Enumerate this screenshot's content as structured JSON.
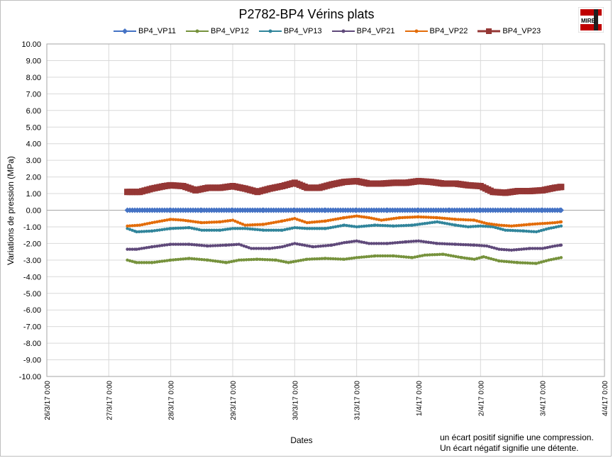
{
  "chart_data": {
    "type": "line",
    "title": "P2782-BP4 Vérins plats",
    "xlabel": "Dates",
    "ylabel": "Variations de pression (MPa)",
    "ylim": [
      -10,
      10
    ],
    "ytick_step": 1,
    "xlim": [
      0,
      9
    ],
    "x_tick_labels": [
      "26/3/17 0:00",
      "27/3/17 0:00",
      "28/3/17 0:00",
      "29/3/17 0:00",
      "30/3/17 0:00",
      "31/3/17 0:00",
      "1/4/17 0:00",
      "2/4/17 0:00",
      "3/4/17 0:00",
      "4/4/17 0:00"
    ],
    "x_unit": "days since 26/3/17 0:00",
    "grid": true,
    "legend_position": "top",
    "series": [
      {
        "name": "BP4_VP11",
        "color": "#4472c4",
        "marker": "diamond",
        "x": [
          1.3,
          1.5,
          2.0,
          2.5,
          3.0,
          3.5,
          4.0,
          4.5,
          5.0,
          5.5,
          6.0,
          6.5,
          7.0,
          7.5,
          8.0,
          8.3
        ],
        "y": [
          0,
          0,
          0,
          0,
          0,
          0,
          0,
          0,
          0,
          0,
          0,
          0,
          0,
          0,
          0,
          0
        ]
      },
      {
        "name": "BP4_VP12",
        "color": "#76923c",
        "marker": "circle",
        "x": [
          1.3,
          1.45,
          1.7,
          2.0,
          2.3,
          2.6,
          2.9,
          3.1,
          3.4,
          3.7,
          3.9,
          4.2,
          4.5,
          4.8,
          5.0,
          5.3,
          5.6,
          5.9,
          6.1,
          6.4,
          6.7,
          6.9,
          7.05,
          7.3,
          7.6,
          7.9,
          8.1,
          8.3
        ],
        "y": [
          -3.0,
          -3.15,
          -3.15,
          -3.0,
          -2.9,
          -3.0,
          -3.15,
          -3.0,
          -2.95,
          -3.0,
          -3.15,
          -2.95,
          -2.9,
          -2.95,
          -2.85,
          -2.75,
          -2.75,
          -2.85,
          -2.7,
          -2.65,
          -2.85,
          -2.95,
          -2.8,
          -3.05,
          -3.15,
          -3.2,
          -3.0,
          -2.85
        ]
      },
      {
        "name": "BP4_VP13",
        "color": "#31859b",
        "marker": "circle",
        "x": [
          1.3,
          1.45,
          1.7,
          2.0,
          2.3,
          2.5,
          2.8,
          3.0,
          3.2,
          3.5,
          3.8,
          4.0,
          4.2,
          4.5,
          4.8,
          5.0,
          5.3,
          5.6,
          5.9,
          6.1,
          6.3,
          6.6,
          6.8,
          7.0,
          7.2,
          7.4,
          7.7,
          7.9,
          8.1,
          8.3
        ],
        "y": [
          -1.1,
          -1.3,
          -1.25,
          -1.1,
          -1.05,
          -1.2,
          -1.2,
          -1.1,
          -1.1,
          -1.2,
          -1.2,
          -1.05,
          -1.1,
          -1.1,
          -0.9,
          -1.0,
          -0.9,
          -0.95,
          -0.9,
          -0.8,
          -0.7,
          -0.9,
          -1.0,
          -0.95,
          -1.0,
          -1.2,
          -1.25,
          -1.3,
          -1.1,
          -0.95
        ]
      },
      {
        "name": "BP4_VP21",
        "color": "#5f497a",
        "marker": "circle",
        "x": [
          1.3,
          1.45,
          1.7,
          2.0,
          2.3,
          2.6,
          2.9,
          3.1,
          3.3,
          3.6,
          3.8,
          4.0,
          4.3,
          4.6,
          4.8,
          5.0,
          5.2,
          5.5,
          5.8,
          6.0,
          6.3,
          6.6,
          6.9,
          7.1,
          7.3,
          7.5,
          7.8,
          8.0,
          8.2,
          8.3
        ],
        "y": [
          -2.35,
          -2.35,
          -2.2,
          -2.05,
          -2.05,
          -2.15,
          -2.1,
          -2.05,
          -2.3,
          -2.3,
          -2.2,
          -2.0,
          -2.2,
          -2.1,
          -1.95,
          -1.85,
          -2.0,
          -2.0,
          -1.9,
          -1.85,
          -2.0,
          -2.05,
          -2.1,
          -2.15,
          -2.35,
          -2.4,
          -2.3,
          -2.3,
          -2.15,
          -2.1
        ]
      },
      {
        "name": "BP4_VP22",
        "color": "#e36c09",
        "marker": "circle",
        "x": [
          1.3,
          1.5,
          1.7,
          2.0,
          2.2,
          2.5,
          2.8,
          3.0,
          3.2,
          3.5,
          3.8,
          4.0,
          4.2,
          4.5,
          4.8,
          5.0,
          5.2,
          5.4,
          5.7,
          6.0,
          6.3,
          6.6,
          6.9,
          7.1,
          7.3,
          7.5,
          7.8,
          8.0,
          8.2,
          8.3
        ],
        "y": [
          -0.95,
          -0.9,
          -0.75,
          -0.55,
          -0.6,
          -0.75,
          -0.7,
          -0.6,
          -0.9,
          -0.85,
          -0.65,
          -0.5,
          -0.75,
          -0.65,
          -0.45,
          -0.35,
          -0.45,
          -0.6,
          -0.45,
          -0.4,
          -0.45,
          -0.55,
          -0.6,
          -0.8,
          -0.9,
          -0.95,
          -0.85,
          -0.8,
          -0.75,
          -0.7
        ]
      },
      {
        "name": "BP4_VP23",
        "color": "#953735",
        "marker": "square",
        "x": [
          1.3,
          1.5,
          1.7,
          1.9,
          2.0,
          2.2,
          2.4,
          2.6,
          2.8,
          3.0,
          3.2,
          3.4,
          3.6,
          3.8,
          4.0,
          4.2,
          4.4,
          4.6,
          4.8,
          5.0,
          5.2,
          5.4,
          5.6,
          5.8,
          6.0,
          6.2,
          6.4,
          6.6,
          6.8,
          7.0,
          7.2,
          7.4,
          7.6,
          7.8,
          8.0,
          8.2,
          8.3
        ],
        "y": [
          1.1,
          1.1,
          1.3,
          1.45,
          1.5,
          1.45,
          1.2,
          1.35,
          1.35,
          1.45,
          1.3,
          1.1,
          1.3,
          1.45,
          1.65,
          1.35,
          1.35,
          1.55,
          1.7,
          1.75,
          1.6,
          1.6,
          1.65,
          1.65,
          1.75,
          1.7,
          1.6,
          1.6,
          1.5,
          1.45,
          1.1,
          1.05,
          1.15,
          1.15,
          1.2,
          1.35,
          1.4
        ]
      }
    ]
  },
  "legend": {
    "items": [
      "BP4_VP11",
      "BP4_VP12",
      "BP4_VP13",
      "BP4_VP21",
      "BP4_VP22",
      "BP4_VP23"
    ]
  },
  "logo": {
    "text": "MIRE"
  },
  "note": {
    "line1": "un écart positif signifie une compression.",
    "line2": "Un écart négatif  signifie une détente."
  }
}
